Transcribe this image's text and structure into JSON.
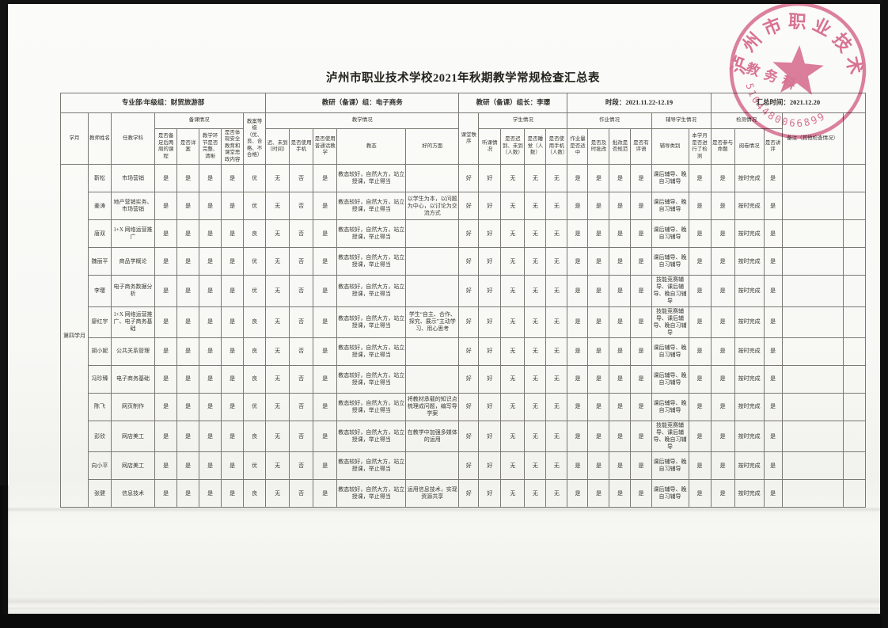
{
  "page": {
    "title": "泸州市职业技术学校2021年秋期教学常规检查汇总表"
  },
  "stamp": {
    "arc_text": "泸州市职业技术学校",
    "center_text": "教务科",
    "serial": "5104480066899",
    "color": "#d4567e"
  },
  "table": {
    "info_cells": [
      {
        "label": "专业部/年级组：财贸旅游部",
        "colspan": 8
      },
      {
        "label": "教研（备课）组：电子商务",
        "colspan": 5
      },
      {
        "label": "教研（备课）组长：李璎",
        "colspan": 5
      },
      {
        "label": "时段：2021.11.22-12.19",
        "colspan": 6
      },
      {
        "label": "汇总时间：2021.12.20",
        "colspan": 5
      }
    ],
    "header_groups": [
      {
        "label": "学月",
        "rowspan": 2
      },
      {
        "label": "教师姓名",
        "rowspan": 2
      },
      {
        "label": "任教学科",
        "rowspan": 2
      },
      {
        "label": "备课情况",
        "colspan": 4
      },
      {
        "label": "教案等级（优、良、合格、不合格）",
        "rowspan": 2
      },
      {
        "label": "教学情况",
        "colspan": 5
      },
      {
        "label": "课堂秩序",
        "rowspan": 2
      },
      {
        "label": "学生情况",
        "colspan": 4
      },
      {
        "label": "作业情况",
        "colspan": 4
      },
      {
        "label": "辅导学生情况",
        "colspan": 2
      },
      {
        "label": "检测情况",
        "colspan": 3
      },
      {
        "label": "备注（其他检查情况）",
        "rowspan": 2
      },
      {
        "label": "",
        "rowspan": 2
      }
    ],
    "header_cols": [
      "是否备足后两周的课程",
      "是否详案",
      "教学环节是否完整、清晰",
      "是否体现安全教育和课堂思政内容",
      "迟、未到（时间）",
      "是否使用手机",
      "是否使用普通话教学",
      "教态",
      "好的方面",
      "听课情况",
      "是否迟到、未到（人数）",
      "是否睡觉（人数）",
      "是否使用手机（人数）",
      "作业量是否适中",
      "是否及时批改",
      "批改是否规范",
      "是否有评语",
      "辅导类别",
      "本学月是否进行了检测",
      "是否参与命题",
      "阅卷情况",
      "是否讲评"
    ],
    "month_label": "第四学月",
    "rows": [
      {
        "name": "靳松",
        "subject": "市场营销",
        "prep": [
          "是",
          "是",
          "是",
          "是"
        ],
        "plan_grade": "优",
        "late": "无",
        "phone": "否",
        "mandarin": "是",
        "demeanor": "教态较好，自然大方，站立授课，举止得当",
        "highlight": "",
        "class_order": "好",
        "listening": "好",
        "stu_late": "无",
        "sleep": "无",
        "stu_phone": "无",
        "hw": [
          "是",
          "是",
          "是",
          "是"
        ],
        "tutoring": "课后辅导、晚自习辅导",
        "tested": "是",
        "proposition": "是",
        "marking": "按时完成",
        "review": "是",
        "note": ""
      },
      {
        "name": "姜涛",
        "subject": "地产营销实务、市场营销",
        "prep": [
          "是",
          "是",
          "是",
          "是"
        ],
        "plan_grade": "优",
        "late": "无",
        "phone": "否",
        "mandarin": "是",
        "demeanor": "教态较好，自然大方，站立授课，举止得当",
        "highlight": "以学生为本，以问题为中心，以讨论为交流方式",
        "class_order": "好",
        "listening": "好",
        "stu_late": "无",
        "sleep": "无",
        "stu_phone": "无",
        "hw": [
          "是",
          "是",
          "是",
          "是"
        ],
        "tutoring": "课后辅导、晚自习辅导",
        "tested": "是",
        "proposition": "是",
        "marking": "按时完成",
        "review": "是",
        "note": ""
      },
      {
        "name": "唐双",
        "subject": "1+X 网络运营推广",
        "prep": [
          "是",
          "是",
          "是",
          "是"
        ],
        "plan_grade": "良",
        "late": "无",
        "phone": "否",
        "mandarin": "是",
        "demeanor": "教态较好，自然大方，站立授课，举止得当",
        "highlight": "",
        "class_order": "好",
        "listening": "好",
        "stu_late": "无",
        "sleep": "无",
        "stu_phone": "无",
        "hw": [
          "是",
          "是",
          "是",
          "是"
        ],
        "tutoring": "课后辅导、晚自习辅导",
        "tested": "是",
        "proposition": "是",
        "marking": "按时完成",
        "review": "是",
        "note": ""
      },
      {
        "name": "魏丽平",
        "subject": "商品学概论",
        "prep": [
          "是",
          "是",
          "是",
          "是"
        ],
        "plan_grade": "优",
        "late": "无",
        "phone": "否",
        "mandarin": "是",
        "demeanor": "教态较好，自然大方，站立授课，举止得当",
        "highlight": "",
        "class_order": "好",
        "listening": "好",
        "stu_late": "无",
        "sleep": "无",
        "stu_phone": "无",
        "hw": [
          "是",
          "是",
          "是",
          "是"
        ],
        "tutoring": "课后辅导、晚自习辅导",
        "tested": "是",
        "proposition": "是",
        "marking": "按时完成",
        "review": "是",
        "note": ""
      },
      {
        "name": "李璎",
        "subject": "电子商务数据分析",
        "prep": [
          "是",
          "是",
          "是",
          "是"
        ],
        "plan_grade": "优",
        "late": "无",
        "phone": "否",
        "mandarin": "是",
        "demeanor": "教态较好，自然大方，站立授课，举止得当",
        "highlight": "",
        "class_order": "好",
        "listening": "好",
        "stu_late": "无",
        "sleep": "无",
        "stu_phone": "无",
        "hw": [
          "是",
          "是",
          "是",
          "是"
        ],
        "tutoring": "技能竞赛辅导、课后辅导、晚自习辅导",
        "tested": "是",
        "proposition": "是",
        "marking": "按时完成",
        "review": "是",
        "note": ""
      },
      {
        "name": "廖红宇",
        "subject": "1+X 网络运营推广、电子商务基础",
        "prep": [
          "是",
          "是",
          "是",
          "是"
        ],
        "plan_grade": "良",
        "late": "无",
        "phone": "否",
        "mandarin": "是",
        "demeanor": "教态较好，自然大方，站立授课，举止得当",
        "highlight": "学生“自主、合作、探究、展示”主动学习、用心思考",
        "class_order": "好",
        "listening": "好",
        "stu_late": "无",
        "sleep": "无",
        "stu_phone": "无",
        "hw": [
          "是",
          "是",
          "是",
          "是"
        ],
        "tutoring": "技能竞赛辅导、课后辅导、晚自习辅导",
        "tested": "是",
        "proposition": "是",
        "marking": "按时完成",
        "review": "是",
        "note": ""
      },
      {
        "name": "胡小妮",
        "subject": "公共关系管理",
        "prep": [
          "是",
          "是",
          "是",
          "是"
        ],
        "plan_grade": "良",
        "late": "无",
        "phone": "否",
        "mandarin": "是",
        "demeanor": "教态较好，自然大方，站立授课，举止得当",
        "highlight": "",
        "class_order": "好",
        "listening": "好",
        "stu_late": "无",
        "sleep": "无",
        "stu_phone": "无",
        "hw": [
          "是",
          "是",
          "是",
          "是"
        ],
        "tutoring": "课后辅导、晚自习辅导",
        "tested": "是",
        "proposition": "是",
        "marking": "按时完成",
        "review": "是",
        "note": ""
      },
      {
        "name": "冯珍臻",
        "subject": "电子商务基础",
        "prep": [
          "是",
          "是",
          "是",
          "是"
        ],
        "plan_grade": "良",
        "late": "无",
        "phone": "否",
        "mandarin": "是",
        "demeanor": "教态较好，自然大方，站立授课，举止得当",
        "highlight": "",
        "class_order": "好",
        "listening": "好",
        "stu_late": "无",
        "sleep": "无",
        "stu_phone": "无",
        "hw": [
          "是",
          "是",
          "是",
          "是"
        ],
        "tutoring": "课后辅导、晚自习辅导",
        "tested": "是",
        "proposition": "是",
        "marking": "按时完成",
        "review": "是",
        "note": ""
      },
      {
        "name": "陈飞",
        "subject": "网页制作",
        "prep": [
          "是",
          "是",
          "是",
          "是"
        ],
        "plan_grade": "优",
        "late": "无",
        "phone": "否",
        "mandarin": "是",
        "demeanor": "教态较好，自然大方，站立授课，举止得当",
        "highlight": "将教材承载的知识点梳理成问题，编写导学案",
        "class_order": "好",
        "listening": "好",
        "stu_late": "无",
        "sleep": "无",
        "stu_phone": "无",
        "hw": [
          "是",
          "是",
          "是",
          "是"
        ],
        "tutoring": "课后辅导、晚自习辅导",
        "tested": "是",
        "proposition": "是",
        "marking": "按时完成",
        "review": "是",
        "note": ""
      },
      {
        "name": "彭欣",
        "subject": "网店美工",
        "prep": [
          "是",
          "是",
          "是",
          "是"
        ],
        "plan_grade": "良",
        "late": "无",
        "phone": "否",
        "mandarin": "是",
        "demeanor": "教态较好，自然大方，站立授课，举止得当",
        "highlight": "在教学中加强多媒体的运用",
        "class_order": "好",
        "listening": "好",
        "stu_late": "无",
        "sleep": "无",
        "stu_phone": "无",
        "hw": [
          "是",
          "是",
          "是",
          "是"
        ],
        "tutoring": "技能竞赛辅导、课后辅导、晚自习辅导",
        "tested": "是",
        "proposition": "是",
        "marking": "按时完成",
        "review": "是",
        "note": ""
      },
      {
        "name": "向小平",
        "subject": "网店美工",
        "prep": [
          "是",
          "是",
          "是",
          "是"
        ],
        "plan_grade": "优",
        "late": "无",
        "phone": "否",
        "mandarin": "是",
        "demeanor": "教态较好，自然大方，站立授课，举止得当",
        "highlight": "",
        "class_order": "好",
        "listening": "好",
        "stu_late": "无",
        "sleep": "无",
        "stu_phone": "无",
        "hw": [
          "是",
          "是",
          "是",
          "是"
        ],
        "tutoring": "课后辅导、晚自习辅导",
        "tested": "是",
        "proposition": "是",
        "marking": "按时完成",
        "review": "是",
        "note": ""
      },
      {
        "name": "张健",
        "subject": "信息技术",
        "prep": [
          "是",
          "是",
          "是",
          "是"
        ],
        "plan_grade": "良",
        "late": "无",
        "phone": "否",
        "mandarin": "是",
        "demeanor": "教态较好，自然大方，站立授课，举止得当",
        "highlight": "运用信息技术，实现资源共享",
        "class_order": "好",
        "listening": "好",
        "stu_late": "无",
        "sleep": "无",
        "stu_phone": "无",
        "hw": [
          "是",
          "是",
          "是",
          "是"
        ],
        "tutoring": "课后辅导、晚自习辅导",
        "tested": "是",
        "proposition": "是",
        "marking": "按时完成",
        "review": "是",
        "note": ""
      }
    ]
  }
}
